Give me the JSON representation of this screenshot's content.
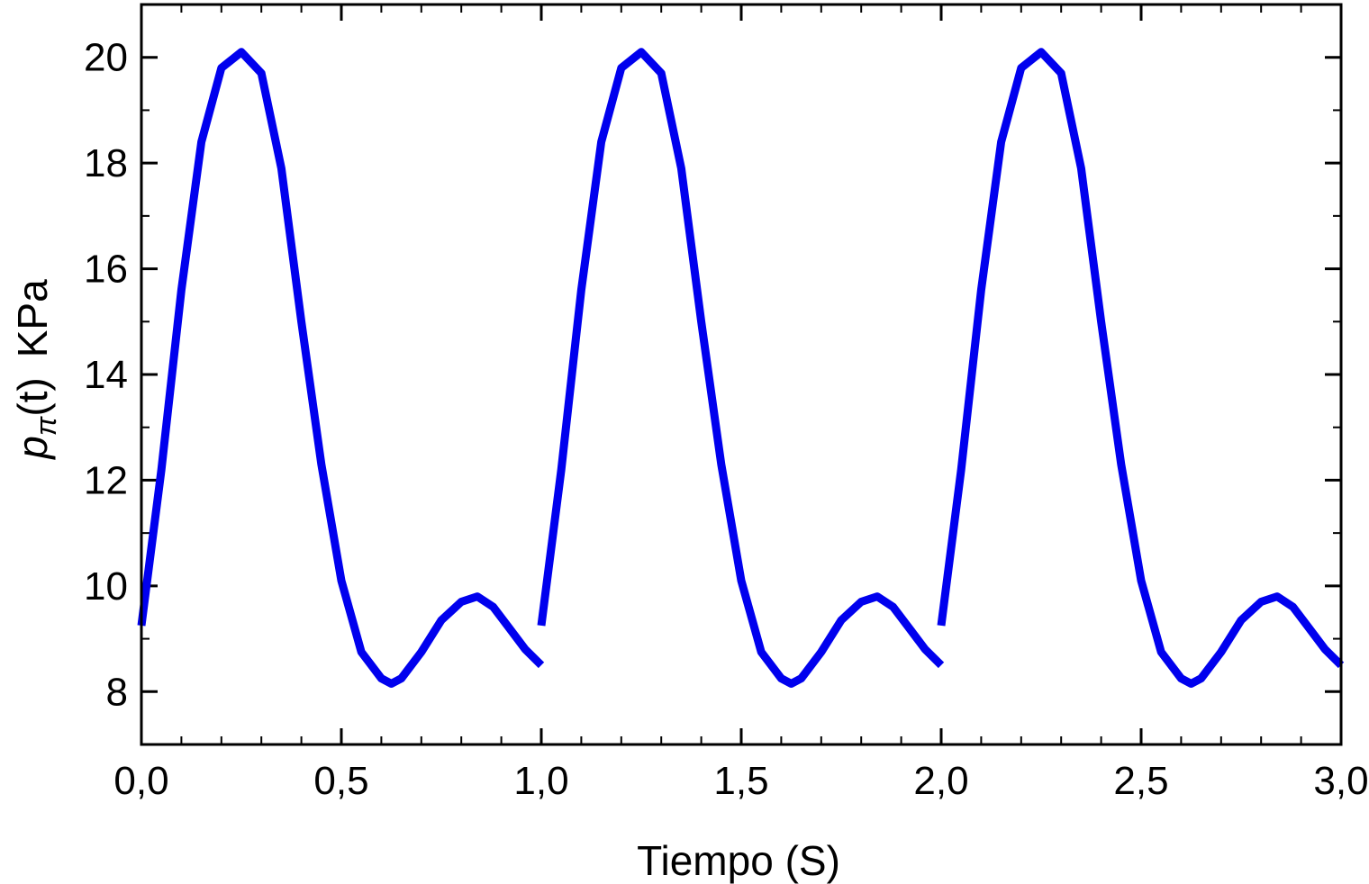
{
  "chart_data": {
    "type": "line",
    "xlabel": "Tiempo  (S)",
    "ylabel": {
      "symbol": "p",
      "subscript": "π",
      "argument": "(t)",
      "unit": "KPa"
    },
    "xlim": [
      0.0,
      3.0
    ],
    "ylim": [
      7.0,
      21.0
    ],
    "x_ticks": [
      0.0,
      0.5,
      1.0,
      1.5,
      2.0,
      2.5,
      3.0
    ],
    "x_tick_labels": [
      "0,0",
      "0,5",
      "1,0",
      "1,5",
      "2,0",
      "2,5",
      "3,0"
    ],
    "y_ticks": [
      8,
      10,
      12,
      14,
      16,
      18,
      20
    ],
    "y_tick_labels": [
      "8",
      "10",
      "12",
      "14",
      "16",
      "18",
      "20"
    ],
    "minor_ticks": {
      "x_step": 0.1,
      "y_step": 1
    },
    "grid": false,
    "legend": "none",
    "series": [
      {
        "color": "#0000ee",
        "period": 1.0,
        "x": [
          0.0,
          0.05,
          0.1,
          0.15,
          0.2,
          0.25,
          0.3,
          0.35,
          0.4,
          0.45,
          0.5,
          0.55,
          0.6,
          0.625,
          0.65,
          0.7,
          0.75,
          0.8,
          0.84,
          0.88,
          0.92,
          0.96,
          1.0
        ],
        "y": [
          9.25,
          12.2,
          15.6,
          18.4,
          19.8,
          20.1,
          19.7,
          17.9,
          15.0,
          12.3,
          10.1,
          8.75,
          8.25,
          8.15,
          8.25,
          8.75,
          9.35,
          9.7,
          9.8,
          9.6,
          9.2,
          8.8,
          8.5
        ]
      }
    ]
  }
}
